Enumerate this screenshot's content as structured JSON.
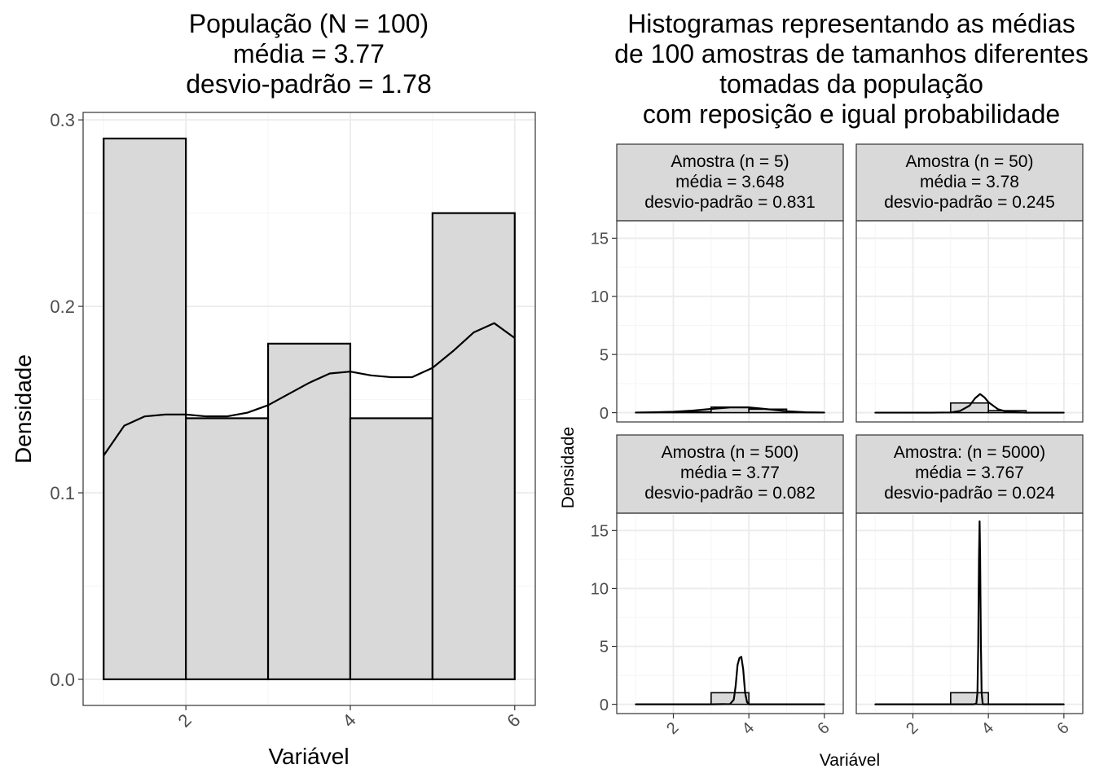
{
  "chart_data": [
    {
      "type": "bar",
      "title": [
        "População (N = 100)",
        "média = 3.77",
        "desvio-padrão = 1.78"
      ],
      "xlabel": "Variável",
      "ylabel": "Densidade",
      "xlim": [
        0.75,
        6.25
      ],
      "ylim": [
        -0.014,
        0.304
      ],
      "x_ticks": [
        2,
        4,
        6
      ],
      "x_tick_labels": [
        "2",
        "4",
        "6"
      ],
      "y_ticks": [
        0.0,
        0.1,
        0.2,
        0.3
      ],
      "y_tick_labels": [
        "0.0",
        "0.1",
        "0.2",
        "0.3"
      ],
      "bins": [
        {
          "x0": 1,
          "x1": 2,
          "density": 0.29
        },
        {
          "x0": 2,
          "x1": 3,
          "density": 0.14
        },
        {
          "x0": 3,
          "x1": 4,
          "density": 0.18
        },
        {
          "x0": 4,
          "x1": 5,
          "density": 0.14
        },
        {
          "x0": 5,
          "x1": 6,
          "density": 0.25
        }
      ],
      "density_curve": {
        "x": [
          1.0,
          1.25,
          1.5,
          1.75,
          2.0,
          2.25,
          2.5,
          2.75,
          3.0,
          3.25,
          3.5,
          3.75,
          4.0,
          4.25,
          4.5,
          4.75,
          5.0,
          5.25,
          5.5,
          5.75,
          6.0
        ],
        "y": [
          0.12,
          0.136,
          0.141,
          0.142,
          0.142,
          0.141,
          0.141,
          0.143,
          0.147,
          0.153,
          0.159,
          0.164,
          0.165,
          0.163,
          0.162,
          0.162,
          0.167,
          0.176,
          0.186,
          0.191,
          0.183
        ]
      },
      "grid": true
    },
    {
      "type": "bar",
      "title": [
        "Histogramas representando as médias",
        "de 100 amostras de tamanhos diferentes",
        "tomadas da população",
        "com reposição e igual probabilidade"
      ],
      "xlabel": "Variável",
      "ylabel": "Densidade",
      "xlim": [
        0.5,
        6.5
      ],
      "ylim": [
        -0.8,
        16.5
      ],
      "x_ticks": [
        2,
        4,
        6
      ],
      "x_tick_labels": [
        "2",
        "4",
        "6"
      ],
      "y_ticks": [
        0,
        5,
        10,
        15
      ],
      "y_tick_labels": [
        "0",
        "5",
        "10",
        "15"
      ],
      "grid": true,
      "panels": [
        {
          "strip": [
            "Amostra (n = 5)",
            "média = 3.648",
            "desvio-padrão = 0.831"
          ],
          "bins": [
            {
              "x0": 1,
              "x1": 2,
              "density": 0.02
            },
            {
              "x0": 2,
              "x1": 3,
              "density": 0.07
            },
            {
              "x0": 3,
              "x1": 4,
              "density": 0.48
            },
            {
              "x0": 4,
              "x1": 5,
              "density": 0.3
            },
            {
              "x0": 5,
              "x1": 6,
              "density": 0.01
            }
          ],
          "density_curve": {
            "x": [
              1.0,
              1.5,
              2.0,
              2.5,
              3.0,
              3.5,
              4.0,
              4.5,
              5.0,
              5.5,
              6.0
            ],
            "y": [
              0.01,
              0.03,
              0.08,
              0.17,
              0.32,
              0.45,
              0.45,
              0.3,
              0.12,
              0.03,
              0.01
            ]
          }
        },
        {
          "strip": [
            "Amostra (n = 50)",
            "média = 3.78",
            "desvio-padrão = 0.245"
          ],
          "bins": [
            {
              "x0": 1,
              "x1": 2,
              "density": 0.0
            },
            {
              "x0": 2,
              "x1": 3,
              "density": 0.0
            },
            {
              "x0": 3,
              "x1": 4,
              "density": 0.83
            },
            {
              "x0": 4,
              "x1": 5,
              "density": 0.17
            },
            {
              "x0": 5,
              "x1": 6,
              "density": 0.0
            }
          ],
          "density_curve": {
            "x": [
              1.0,
              2.0,
              2.5,
              3.0,
              3.25,
              3.5,
              3.65,
              3.78,
              3.9,
              4.0,
              4.25,
              4.5,
              5.0,
              6.0
            ],
            "y": [
              0.0,
              0.0,
              0.0,
              0.02,
              0.15,
              0.6,
              1.25,
              1.6,
              1.3,
              0.9,
              0.3,
              0.06,
              0.0,
              0.0
            ]
          }
        },
        {
          "strip": [
            "Amostra (n = 500)",
            "média = 3.77",
            "desvio-padrão = 0.082"
          ],
          "bins": [
            {
              "x0": 1,
              "x1": 2,
              "density": 0.0
            },
            {
              "x0": 2,
              "x1": 3,
              "density": 0.0
            },
            {
              "x0": 3,
              "x1": 4,
              "density": 1.0
            },
            {
              "x0": 4,
              "x1": 5,
              "density": 0.0
            },
            {
              "x0": 5,
              "x1": 6,
              "density": 0.0
            }
          ],
          "density_curve": {
            "x": [
              1.0,
              3.0,
              3.5,
              3.6,
              3.65,
              3.7,
              3.75,
              3.8,
              3.85,
              3.9,
              3.95,
              4.0,
              6.0
            ],
            "y": [
              0.0,
              0.0,
              0.02,
              0.4,
              1.6,
              3.4,
              4.0,
              4.1,
              3.0,
              1.0,
              0.2,
              0.0,
              0.0
            ]
          }
        },
        {
          "strip": [
            "Amostra: (n = 5000)",
            "média = 3.767",
            "desvio-padrão = 0.024"
          ],
          "bins": [
            {
              "x0": 1,
              "x1": 2,
              "density": 0.0
            },
            {
              "x0": 2,
              "x1": 3,
              "density": 0.0
            },
            {
              "x0": 3,
              "x1": 4,
              "density": 1.0
            },
            {
              "x0": 4,
              "x1": 5,
              "density": 0.0
            },
            {
              "x0": 5,
              "x1": 6,
              "density": 0.0
            }
          ],
          "density_curve": {
            "x": [
              1.0,
              3.6,
              3.68,
              3.71,
              3.73,
              3.75,
              3.767,
              3.78,
              3.8,
              3.82,
              3.85,
              6.0
            ],
            "y": [
              0.0,
              0.0,
              0.05,
              1.0,
              5.0,
              12.5,
              15.8,
              13.0,
              5.5,
              1.0,
              0.0,
              0.0
            ]
          }
        }
      ]
    }
  ]
}
